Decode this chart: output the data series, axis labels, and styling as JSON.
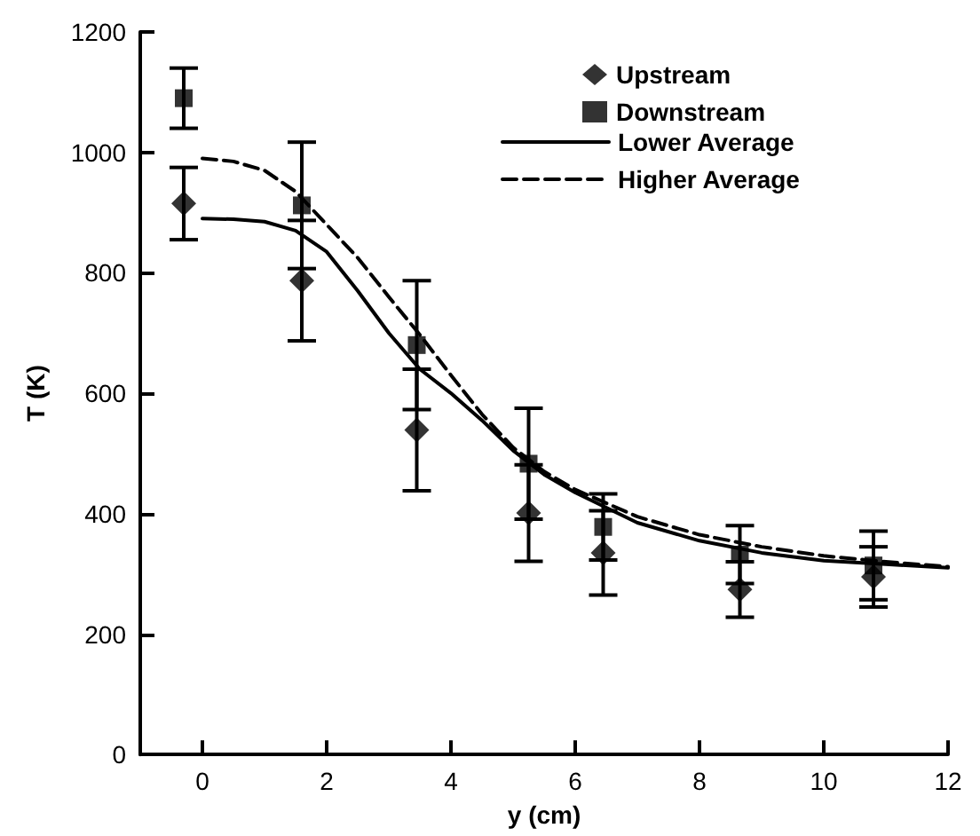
{
  "chart_data": {
    "type": "scatter",
    "xlabel": "y (cm)",
    "ylabel": "T (K)",
    "xlim": [
      -1,
      12
    ],
    "xticks": [
      0,
      2,
      4,
      6,
      8,
      10,
      12
    ],
    "ylim": [
      0,
      1200
    ],
    "yticks": [
      0,
      200,
      400,
      600,
      800,
      1000,
      1200
    ],
    "grid": false,
    "legend": "top right",
    "series": [
      {
        "name": "Upstream",
        "marker": "diamond",
        "color": "#000000",
        "x": [
          -0.3,
          1.6,
          3.45,
          5.25,
          6.45,
          8.65,
          10.8
        ],
        "values": [
          915,
          787,
          539,
          401,
          335,
          274,
          295
        ],
        "errors": [
          60,
          100,
          101,
          80,
          70,
          46,
          50
        ]
      },
      {
        "name": "Downstream",
        "marker": "square",
        "color": "#000000",
        "x": [
          -0.3,
          1.6,
          3.45,
          5.25,
          6.45,
          8.65,
          10.8
        ],
        "values": [
          1090,
          912,
          680,
          483,
          378,
          332,
          314
        ],
        "errors": [
          50,
          105,
          107,
          92,
          55,
          48,
          57
        ]
      },
      {
        "name": "Lower Average",
        "type": "line",
        "line_style": "solid",
        "color": "#000000",
        "x": [
          0,
          0.5,
          1,
          1.5,
          2,
          2.5,
          3,
          3.5,
          4,
          4.5,
          5,
          5.5,
          6,
          7,
          8,
          9,
          10,
          11,
          12
        ],
        "values": [
          890,
          889,
          885,
          870,
          835,
          770,
          700,
          640,
          600,
          555,
          505,
          465,
          435,
          385,
          355,
          335,
          322,
          316,
          310
        ]
      },
      {
        "name": "Higher Average",
        "type": "line",
        "line_style": "dashed",
        "color": "#000000",
        "x": [
          0,
          0.5,
          1,
          1.5,
          2,
          2.5,
          3,
          3.5,
          4,
          4.5,
          5,
          5.5,
          6,
          7,
          8,
          9,
          10,
          11,
          12
        ],
        "values": [
          990,
          985,
          970,
          935,
          880,
          825,
          760,
          697,
          630,
          565,
          510,
          470,
          440,
          395,
          365,
          345,
          330,
          320,
          312
        ]
      }
    ]
  }
}
